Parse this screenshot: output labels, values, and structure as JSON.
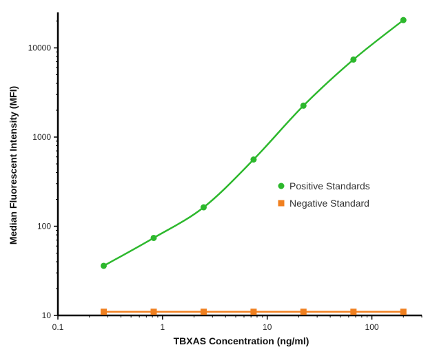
{
  "chart_data": {
    "type": "scatter",
    "xlabel": "TBXAS Concentration (ng/ml)",
    "ylabel": "Median Fluorescent Intensity (MFI)",
    "xscale": "log",
    "yscale": "log",
    "xlim": [
      0.1,
      300
    ],
    "ylim": [
      10,
      25000
    ],
    "x_ticks": [
      0.1,
      1,
      10,
      100
    ],
    "x_tick_labels": [
      "0.1",
      "1",
      "10",
      "100"
    ],
    "y_ticks": [
      10,
      100,
      1000,
      10000
    ],
    "y_tick_labels": [
      "10",
      "100",
      "1000",
      "10000"
    ],
    "grid": false,
    "legend_position": "center-right",
    "series": [
      {
        "name": "Positive Standards",
        "color": "#2db82d",
        "marker": "circle",
        "fit_curve": true,
        "x": [
          0.274,
          0.823,
          2.47,
          7.41,
          22.2,
          66.7,
          200
        ],
        "y": [
          36,
          74,
          163,
          560,
          2250,
          7400,
          20500
        ]
      },
      {
        "name": "Negative Standard",
        "color": "#f08020",
        "marker": "square",
        "fit_curve": true,
        "x": [
          0.274,
          0.823,
          2.47,
          7.41,
          22.2,
          66.7,
          200
        ],
        "y": [
          11,
          11,
          11,
          11,
          11,
          11,
          11
        ]
      }
    ]
  }
}
